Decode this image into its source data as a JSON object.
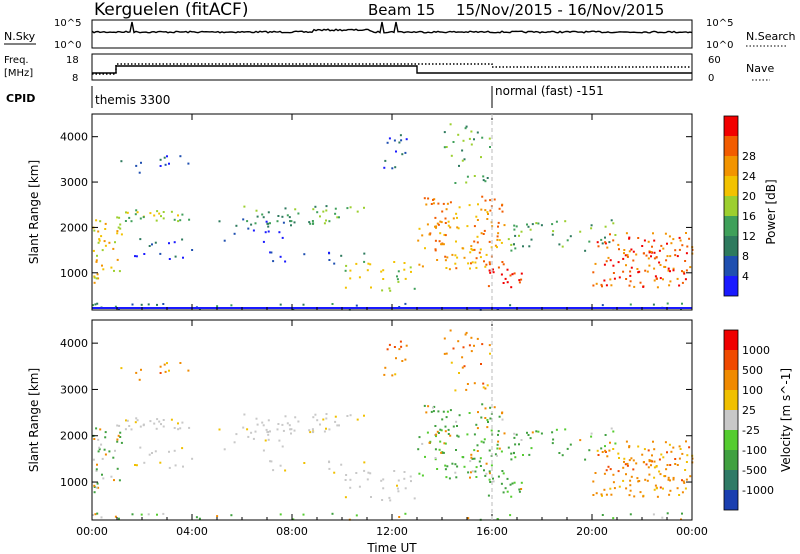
{
  "header": {
    "station": "Kerguelen (fitACF)",
    "beam": "Beam 15",
    "date_range": "15/Nov/2015 - 16/Nov/2015"
  },
  "top_panel": {
    "left_label": "N.Sky",
    "left_ticks": [
      "10^5",
      "10^0"
    ],
    "right_label": "N.Search",
    "right_ticks": [
      "10^5",
      "10^0"
    ]
  },
  "freq_panel": {
    "left_label_1": "Freq.",
    "left_label_2": "[MHz]",
    "left_ticks": [
      "18",
      "8"
    ],
    "right_label": "Nave",
    "right_ticks": [
      "60",
      "0"
    ]
  },
  "cpid_panel": {
    "label": "CPID",
    "mode_1": "themis 3300",
    "mode_2": "normal (fast) -151"
  },
  "chart_data": [
    {
      "type": "heatmap",
      "title": "",
      "ylabel": "Slant Range [km]",
      "xlabel": "",
      "x_ticks": [
        "00:00",
        "04:00",
        "08:00",
        "12:00",
        "16:00",
        "20:00",
        "00:00"
      ],
      "y_ticks": [
        1000,
        2000,
        3000,
        4000
      ],
      "ylim": [
        180,
        4500
      ],
      "x_range_hours": [
        0,
        24
      ],
      "colorbar": {
        "label": "Power [dB]",
        "ticks": [
          "4",
          "8",
          "12",
          "16",
          "20",
          "24",
          "28"
        ],
        "colors": [
          "#1a1aff",
          "#1f4fb0",
          "#2e7a5e",
          "#3fa05a",
          "#9ccf2f",
          "#f2c200",
          "#f29400",
          "#f25c00",
          "#f20000"
        ]
      }
    },
    {
      "type": "heatmap",
      "title": "",
      "ylabel": "Slant Range [km]",
      "xlabel": "Time UT",
      "x_ticks": [
        "00:00",
        "04:00",
        "08:00",
        "12:00",
        "16:00",
        "20:00",
        "00:00"
      ],
      "y_ticks": [
        1000,
        2000,
        3000,
        4000
      ],
      "ylim": [
        180,
        4500
      ],
      "x_range_hours": [
        0,
        24
      ],
      "colorbar": {
        "label": "Velocity [m s^-1]",
        "ticks": [
          "1000",
          "500",
          "100",
          "25",
          "-25",
          "-100",
          "-500",
          "-1000"
        ],
        "colors": [
          "#1a3fb0",
          "#2f7a66",
          "#40a040",
          "#55cc30",
          "#c8c8c8",
          "#f0c000",
          "#f08a00",
          "#f04a00",
          "#f00000"
        ]
      }
    }
  ],
  "colors": {
    "power_strong": "#f01800",
    "power_mid": "#f29400",
    "power_weak": "#1f4fb0",
    "velocity_ground": "#c8c8c8",
    "velocity_toward": "#40a040",
    "velocity_away": "#f08a00"
  }
}
